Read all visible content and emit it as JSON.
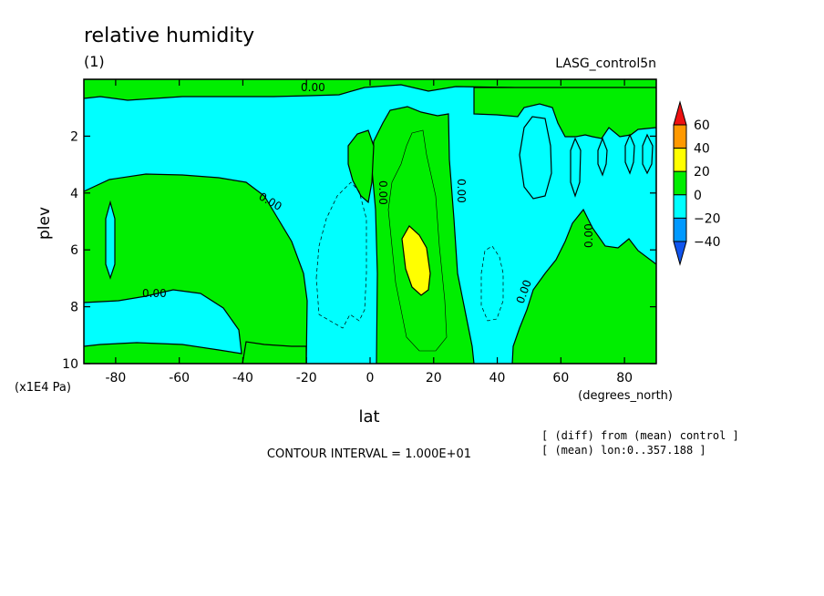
{
  "chart_data": {
    "type": "heatmap",
    "title": "relative humidity",
    "subtitle": "(1)",
    "dataset_label": "LASG_control5n",
    "xlabel": "lat",
    "x_units": "(degrees_north)",
    "ylabel": "plev",
    "y_units": "(x1E4 Pa)",
    "xlim": [
      -90,
      90
    ],
    "ylim": [
      10,
      0
    ],
    "x_ticks": [
      -80,
      -60,
      -40,
      -20,
      0,
      20,
      40,
      60,
      80
    ],
    "y_ticks": [
      2,
      4,
      6,
      8,
      10
    ],
    "contour_interval_text": "CONTOUR INTERVAL = 1.000E+01",
    "notes": [
      "[ (diff) from (mean) control ]",
      "[ (mean) lon:0..357.188 ]"
    ],
    "contour_labels": [
      "0.00",
      "0.00",
      "0.00",
      "0.00",
      "0.00",
      "0.00",
      "0.00"
    ],
    "colorbar": {
      "levels": [
        60,
        40,
        20,
        0,
        -20,
        -40
      ],
      "colors": {
        "above_60": "#ee1111",
        "40_60": "#ff9900",
        "20_40": "#ffff00",
        "0_20": "#00ee00",
        "m20_0": "#00ffff",
        "m40_m20": "#0099ff",
        "below_m40": "#1155ee"
      }
    },
    "regions": {
      "green_bands": [
        [
          -2,
          28
        ],
        [
          47,
          90
        ]
      ],
      "yellow_max": {
        "lat": 14,
        "plev": 6.6,
        "value_range": [
          20,
          40
        ]
      },
      "dashed_negative_lat": [
        -16,
        42
      ]
    }
  }
}
